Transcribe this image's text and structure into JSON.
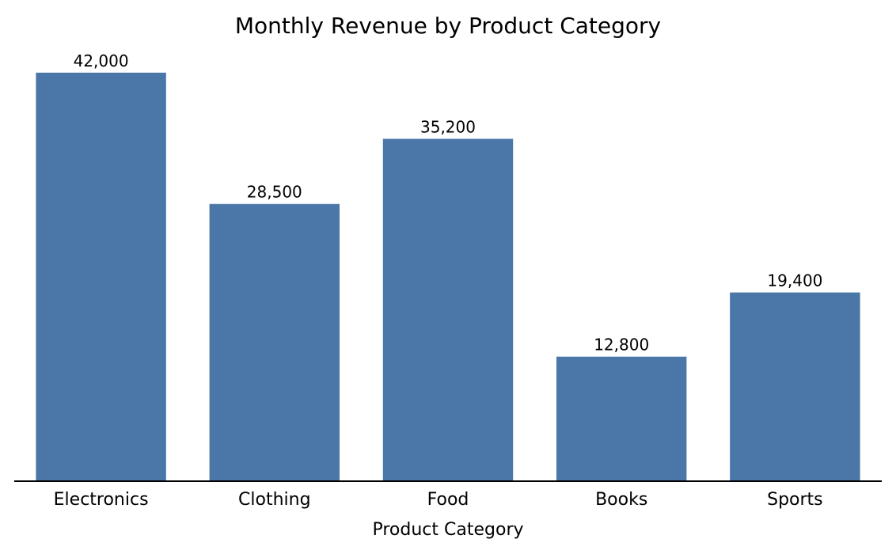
{
  "chart_data": {
    "type": "bar",
    "title": "Monthly Revenue by Product Category",
    "xlabel": "Product Category",
    "ylabel": "",
    "categories": [
      "Electronics",
      "Clothing",
      "Food",
      "Books",
      "Sports"
    ],
    "values": [
      42000,
      28500,
      35200,
      12800,
      19400
    ],
    "value_labels": [
      "42,000",
      "28,500",
      "35,200",
      "12,800",
      "19,400"
    ],
    "ylim": [
      0,
      44100
    ],
    "grid": false,
    "legend": "none",
    "colors": {
      "bar": "#4a77a8",
      "axis": "#000000",
      "text": "#000000"
    }
  }
}
